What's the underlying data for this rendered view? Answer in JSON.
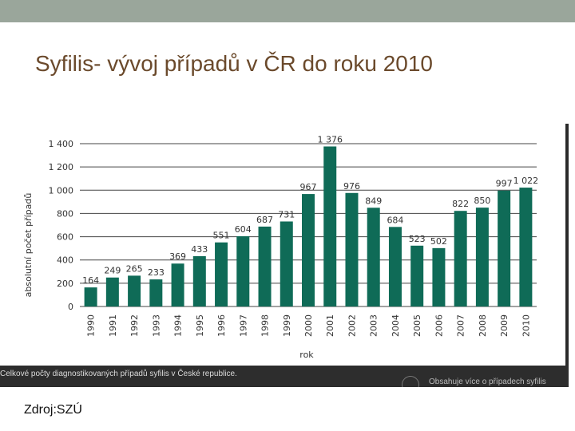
{
  "slide": {
    "title": "Syfilis- vývoj případů v ČR do roku 2010",
    "source": "Zdroj:SZÚ",
    "caption_upper": "",
    "caption": "Celkové počty diagnostikovaných případů syfilis v České republice.",
    "strip_text": "Obsahuje více o případech syfilis"
  },
  "chart_data": {
    "type": "bar",
    "title": "",
    "xlabel": "rok",
    "ylabel": "absolutní počet případů",
    "categories": [
      "1990",
      "1991",
      "1992",
      "1993",
      "1994",
      "1995",
      "1996",
      "1997",
      "1998",
      "1999",
      "2000",
      "2001",
      "2002",
      "2003",
      "2004",
      "2005",
      "2006",
      "2007",
      "2008",
      "2009",
      "2010"
    ],
    "values": [
      164,
      249,
      265,
      233,
      369,
      433,
      551,
      604,
      687,
      731,
      967,
      1376,
      976,
      849,
      684,
      523,
      502,
      822,
      850,
      997,
      1022
    ],
    "value_labels": [
      "164",
      "249",
      "265",
      "233",
      "369",
      "433",
      "551",
      "604",
      "687",
      "731",
      "967",
      "1 376",
      "976",
      "849",
      "684",
      "523",
      "502",
      "822",
      "850",
      "997",
      "1 022"
    ],
    "ylim": [
      0,
      1400
    ],
    "yticks": [
      0,
      200,
      400,
      600,
      800,
      1000,
      1200,
      1400
    ],
    "ytick_labels": [
      "0",
      "200",
      "400",
      "600",
      "800",
      "1 000",
      "1 200",
      "1 400"
    ],
    "grid": true,
    "bar_color": "#0f6b57",
    "grid_color": "#444444"
  }
}
